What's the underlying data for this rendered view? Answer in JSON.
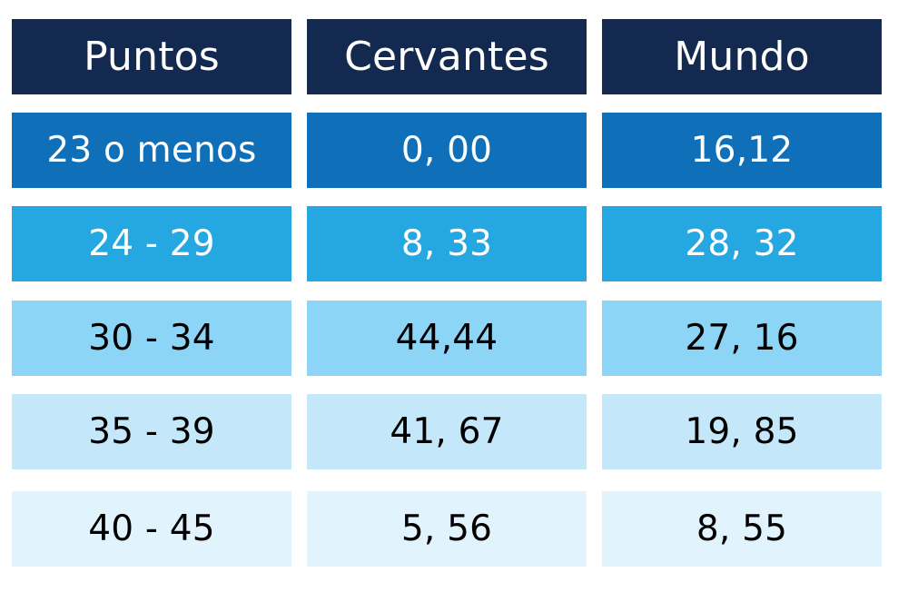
{
  "chart_data": {
    "type": "table",
    "columns": [
      "Puntos",
      "Cervantes",
      "Mundo"
    ],
    "rows": [
      [
        "23 o menos",
        "0, 00",
        "16,12"
      ],
      [
        "24 - 29",
        "8, 33",
        "28, 32"
      ],
      [
        "30 - 34",
        "44,44",
        "27, 16"
      ],
      [
        "35 - 39",
        "41, 67",
        "19, 85"
      ],
      [
        "40 - 45",
        "5, 56",
        "8, 55"
      ]
    ],
    "row_colors": [
      "#0f6fb8",
      "#25a8e1",
      "#8dd5f6",
      "#c4e8fa",
      "#e1f3fd"
    ],
    "row_text_colors": [
      "#ffffff",
      "#ffffff",
      "#000000",
      "#000000",
      "#000000"
    ],
    "header_color": "#13294f"
  }
}
